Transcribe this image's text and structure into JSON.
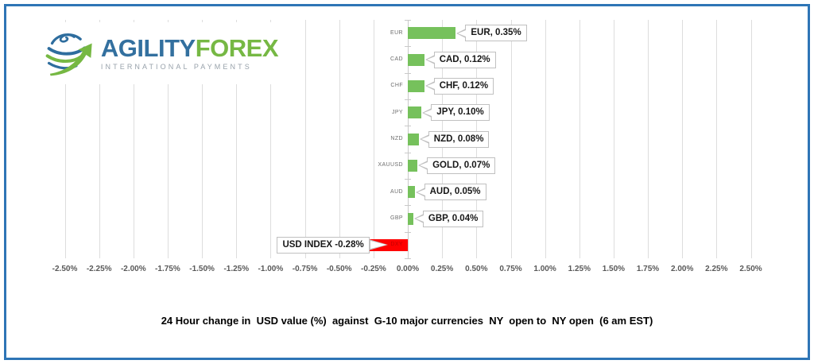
{
  "window": {
    "background": "#FFFFFF",
    "border_color": "#2E75B6"
  },
  "logo": {
    "brand_blue": "AGILITY",
    "brand_green": "FOREX",
    "tagline": "INTERNATIONAL PAYMENTS",
    "blue_hex": "#33709F",
    "green_hex": "#76B844",
    "icon": "globe-swoosh-arrow-icon"
  },
  "chart_data": {
    "type": "bar",
    "orientation": "horizontal",
    "title": "24 Hour change in  USD value (%)  against  G-10 major currencies  NY  open to  NY open  (6 am EST)",
    "categories": [
      "EUR",
      "CAD",
      "CHF",
      "JPY",
      "NZD",
      "XAUUSD",
      "AUD",
      "GBP",
      "DXY"
    ],
    "values": [
      0.35,
      0.12,
      0.12,
      0.1,
      0.08,
      0.07,
      0.05,
      0.04,
      -0.28
    ],
    "data_labels": [
      "EUR, 0.35%",
      "CAD, 0.12%",
      "CHF, 0.12%",
      "JPY, 0.10%",
      "NZD, 0.08%",
      "GOLD, 0.07%",
      "AUD, 0.05%",
      "GBP, 0.04%",
      "USD INDEX -0.28%"
    ],
    "xlabel": "",
    "ylabel": "",
    "xlim": [
      -2.5,
      2.5
    ],
    "tick_step": 0.25,
    "tick_labels": [
      "-2.50%",
      "-2.25%",
      "-2.00%",
      "-1.75%",
      "-1.50%",
      "-1.25%",
      "-1.00%",
      "-0.75%",
      "-0.50%",
      "-0.25%",
      "0.00%",
      "0.25%",
      "0.50%",
      "0.75%",
      "1.00%",
      "1.25%",
      "1.50%",
      "1.75%",
      "2.00%",
      "2.25%",
      "2.50%"
    ],
    "positive_color": "#76C15C",
    "negative_color": "#FF0000",
    "negative_category_label_color": "#C00000",
    "grid": true,
    "legend": "none"
  }
}
